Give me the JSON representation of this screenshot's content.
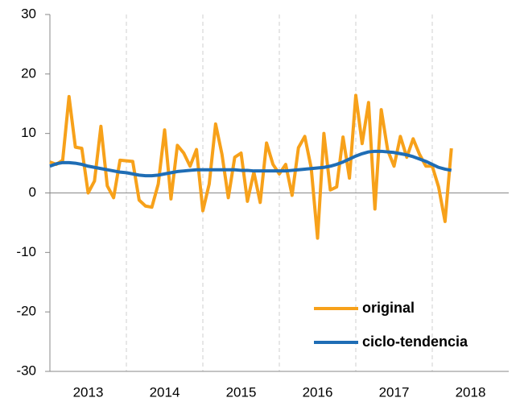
{
  "chart_data": {
    "type": "line",
    "x": [
      2013,
      2013.083,
      2013.167,
      2013.25,
      2013.333,
      2013.417,
      2013.5,
      2013.583,
      2013.667,
      2013.75,
      2013.833,
      2013.917,
      2014,
      2014.083,
      2014.167,
      2014.25,
      2014.333,
      2014.417,
      2014.5,
      2014.583,
      2014.667,
      2014.75,
      2014.833,
      2014.917,
      2015,
      2015.083,
      2015.167,
      2015.25,
      2015.333,
      2015.417,
      2015.5,
      2015.583,
      2015.667,
      2015.75,
      2015.833,
      2015.917,
      2016,
      2016.083,
      2016.167,
      2016.25,
      2016.333,
      2016.417,
      2016.5,
      2016.583,
      2016.667,
      2016.75,
      2016.833,
      2016.917,
      2017,
      2017.083,
      2017.167,
      2017.25,
      2017.333,
      2017.417,
      2017.5,
      2017.583,
      2017.667,
      2017.75,
      2017.833,
      2017.917,
      2018,
      2018.083,
      2018.167,
      2018.25
    ],
    "series": [
      {
        "name": "original",
        "color": "#f7a11a",
        "values": [
          5.2,
          4.8,
          5.5,
          16.2,
          7.7,
          7.5,
          0,
          2,
          11.2,
          1.2,
          -0.8,
          5.5,
          5.4,
          5.3,
          -1.2,
          -2.2,
          -2.4,
          1.5,
          10.6,
          -1,
          8,
          6.7,
          4.5,
          7.3,
          -3,
          1.5,
          11.6,
          6.5,
          -0.8,
          6,
          6.7,
          -1.4,
          3.5,
          -1.6,
          8.4,
          4.8,
          3.2,
          4.8,
          -0.4,
          7.6,
          9.5,
          4.2,
          -7.6,
          10,
          0.5,
          1,
          9.4,
          2.5,
          16.4,
          8.3,
          15.2,
          -2.7,
          14,
          7.2,
          4.5,
          9.5,
          6,
          9.1,
          6.5,
          4.5,
          4.5,
          1,
          -4.8,
          7.5
        ]
      },
      {
        "name": "ciclo-tendencia",
        "color": "#1f6db5",
        "values": [
          4.5,
          4.9,
          5.1,
          5.1,
          5.0,
          4.8,
          4.5,
          4.3,
          4.1,
          3.9,
          3.7,
          3.5,
          3.4,
          3.2,
          3.0,
          2.9,
          2.9,
          3.0,
          3.2,
          3.4,
          3.6,
          3.7,
          3.8,
          3.9,
          3.9,
          3.9,
          3.9,
          3.9,
          3.9,
          3.9,
          3.8,
          3.8,
          3.7,
          3.7,
          3.7,
          3.7,
          3.7,
          3.7,
          3.8,
          3.9,
          4.0,
          4.1,
          4.2,
          4.3,
          4.5,
          4.8,
          5.2,
          5.7,
          6.2,
          6.6,
          6.9,
          7.0,
          7.0,
          6.9,
          6.8,
          6.6,
          6.4,
          6.1,
          5.7,
          5.3,
          4.8,
          4.3,
          4.0,
          3.8
        ]
      }
    ],
    "xlim": [
      2013,
      2019
    ],
    "xticks": [
      {
        "value": 2013.5,
        "label": "2013"
      },
      {
        "value": 2014.5,
        "label": "2014"
      },
      {
        "value": 2015.5,
        "label": "2015"
      },
      {
        "value": 2016.5,
        "label": "2016"
      },
      {
        "value": 2017.5,
        "label": "2017"
      },
      {
        "value": 2018.5,
        "label": "2018"
      }
    ],
    "xgrid": [
      2014,
      2015,
      2016,
      2017,
      2018
    ],
    "ylim": [
      -30,
      30
    ],
    "yticks": [
      -30,
      -20,
      -10,
      0,
      10,
      20,
      30
    ],
    "legend": "lower right"
  }
}
